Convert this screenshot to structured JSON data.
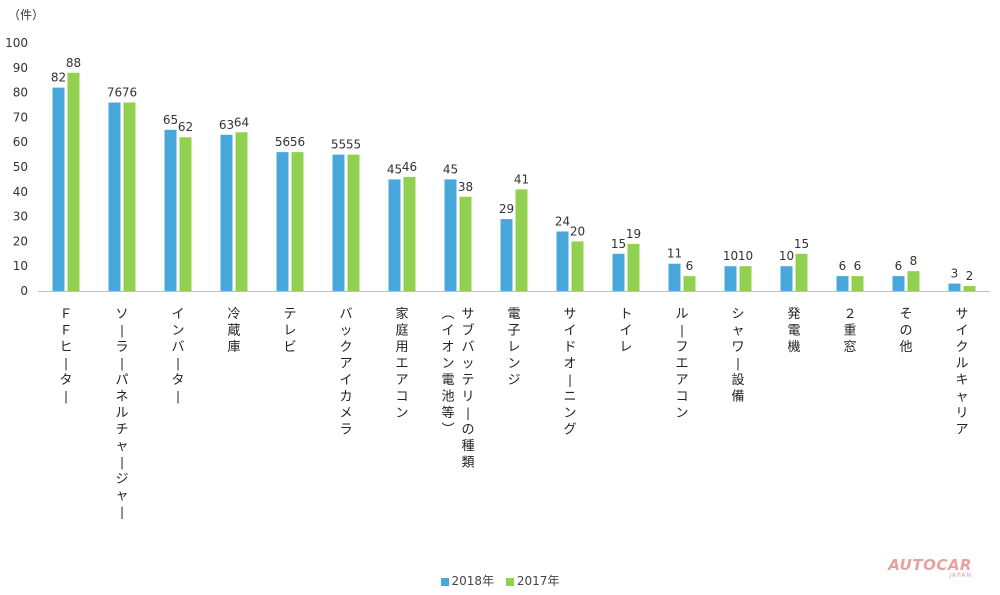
{
  "unit_label": "（件）",
  "watermark": {
    "main": "AUTOCAR",
    "sub": "JAPAN"
  },
  "colors": {
    "series_2018": "#4aa7dc",
    "series_2017": "#92d050",
    "axis": "#bfbfbf"
  },
  "chart_data": {
    "type": "bar",
    "title": "",
    "xlabel": "",
    "ylabel": "（件）",
    "ylim": [
      0,
      100
    ],
    "yticks": [
      0,
      10,
      20,
      30,
      40,
      50,
      60,
      70,
      80,
      90,
      100
    ],
    "grid": false,
    "legend_position": "bottom",
    "categories": [
      "ＦＦヒーター",
      "ソーラーパネルチャージャー",
      "インバーター",
      "冷蔵庫",
      "テレビ",
      "バックアイカメラ",
      "家庭用エアコン",
      "サブバッテリーの種類（イオン電池等）",
      "電子レンジ",
      "サイドオーニング",
      "トイレ",
      "ルーフエアコン",
      "シャワー設備",
      "発電機",
      "２重窓",
      "その他",
      "サイクルキャリア"
    ],
    "category_label_columns": [
      [
        "ＦＦヒーター"
      ],
      [
        "ソーラーパネルチャージャー"
      ],
      [
        "インバーター"
      ],
      [
        "冷蔵庫"
      ],
      [
        "テレビ"
      ],
      [
        "バックアイカメラ"
      ],
      [
        "家庭用エアコン"
      ],
      [
        "（イオン電池等）",
        "サブバッテリーの種類"
      ],
      [
        "電子レンジ"
      ],
      [
        "サイドオーニング"
      ],
      [
        "トイレ"
      ],
      [
        "ルーフエアコン"
      ],
      [
        "シャワー設備"
      ],
      [
        "発電機"
      ],
      [
        "２重窓"
      ],
      [
        "その他"
      ],
      [
        "サイクルキャリア"
      ]
    ],
    "series": [
      {
        "name": "2018年",
        "values": [
          82,
          76,
          65,
          63,
          56,
          55,
          45,
          45,
          29,
          24,
          15,
          11,
          10,
          10,
          6,
          6,
          3
        ]
      },
      {
        "name": "2017年",
        "values": [
          88,
          76,
          62,
          64,
          56,
          55,
          46,
          38,
          41,
          20,
          19,
          6,
          10,
          15,
          6,
          8,
          2
        ]
      }
    ]
  }
}
